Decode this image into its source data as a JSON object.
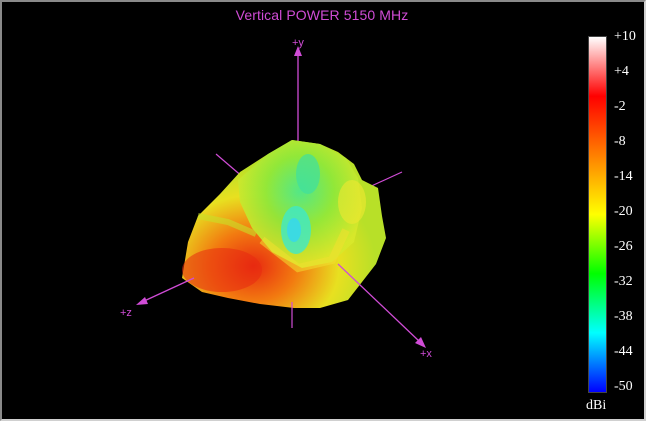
{
  "title": "Vertical POWER 5150  MHz",
  "axes": {
    "y": "+y",
    "z": "+z",
    "x": "+x"
  },
  "colors": {
    "background": "#000000",
    "axis": "#d04cd6",
    "scale": [
      "#ffffff",
      "#ff0000",
      "#ff8000",
      "#ffff00",
      "#00ff00",
      "#00ffff",
      "#0000ff"
    ]
  },
  "scale": {
    "unit": "dBi",
    "ticks": [
      "+10",
      "+4",
      "-2",
      "-8",
      "-14",
      "-20",
      "-26",
      "-32",
      "-38",
      "-44",
      "-50"
    ]
  }
}
